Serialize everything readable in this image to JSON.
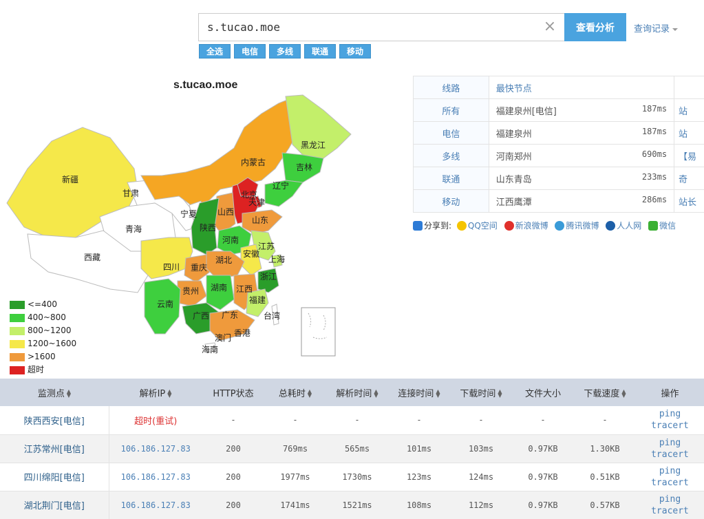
{
  "search": {
    "value": "s.tucao.moe",
    "button_label": "查看分析",
    "history_label": "查询记录"
  },
  "filters": [
    "全选",
    "电信",
    "多线",
    "联通",
    "移动"
  ],
  "map": {
    "title": "s.tucao.moe",
    "provinces": [
      {
        "name": "新疆",
        "color": "#f5e84a"
      },
      {
        "name": "甘肃",
        "color": "#ffffff"
      },
      {
        "name": "青海",
        "color": "#ffffff"
      },
      {
        "name": "西藏",
        "color": "#ffffff"
      },
      {
        "name": "内蒙古",
        "color": "#f5a623"
      },
      {
        "name": "黑龙江",
        "color": "#c3ef6a"
      },
      {
        "name": "吉林",
        "color": "#3ecf3e"
      },
      {
        "name": "辽宁",
        "color": "#3ecf3e"
      },
      {
        "name": "北京",
        "color": "#dd2222"
      },
      {
        "name": "天津",
        "color": "#dd2222"
      },
      {
        "name": "河北",
        "color": "#dd2222"
      },
      {
        "name": "山西",
        "color": "#ef9a3c"
      },
      {
        "name": "山东",
        "color": "#ef9a3c"
      },
      {
        "name": "宁夏",
        "color": "#ffffff"
      },
      {
        "name": "陕西",
        "color": "#2a9d2a"
      },
      {
        "name": "河南",
        "color": "#3ecf3e"
      },
      {
        "name": "江苏",
        "color": "#c3ef6a"
      },
      {
        "name": "安徽",
        "color": "#f5e84a"
      },
      {
        "name": "上海",
        "color": "#c3ef6a"
      },
      {
        "name": "四川",
        "color": "#f5e84a"
      },
      {
        "name": "重庆",
        "color": "#ef9a3c"
      },
      {
        "name": "湖北",
        "color": "#ef9a3c"
      },
      {
        "name": "浙江",
        "color": "#2a9d2a"
      },
      {
        "name": "贵州",
        "color": "#ef9a3c"
      },
      {
        "name": "湖南",
        "color": "#3ecf3e"
      },
      {
        "name": "江西",
        "color": "#ef9a3c"
      },
      {
        "name": "福建",
        "color": "#c3ef6a"
      },
      {
        "name": "云南",
        "color": "#3ecf3e"
      },
      {
        "name": "广西",
        "color": "#2a9d2a"
      },
      {
        "name": "广东",
        "color": "#ef9a3c"
      },
      {
        "name": "台湾",
        "color": "#ffffff"
      },
      {
        "name": "澳门",
        "color": "#ffffff"
      },
      {
        "name": "香港",
        "color": "#ffffff"
      },
      {
        "name": "海南",
        "color": "#ffffff"
      },
      {
        "name": "南海诸岛",
        "color": "#ffffff"
      }
    ]
  },
  "legend": [
    {
      "label": "<=400",
      "color": "#2a9d2a"
    },
    {
      "label": "400~800",
      "color": "#3ecf3e"
    },
    {
      "label": "800~1200",
      "color": "#c3ef6a"
    },
    {
      "label": "1200~1600",
      "color": "#f5e84a"
    },
    {
      "label": ">1600",
      "color": "#ef9a3c"
    },
    {
      "label": "超时",
      "color": "#dd2222"
    }
  ],
  "route_table": {
    "header": {
      "type": "线路",
      "node": "最快节点"
    },
    "rows": [
      {
        "type": "所有",
        "node": "福建泉州[电信]",
        "time": "187ms",
        "extra": "站"
      },
      {
        "type": "电信",
        "node": "福建泉州",
        "time": "187ms",
        "extra": "站"
      },
      {
        "type": "多线",
        "node": "河南郑州",
        "time": "690ms",
        "extra": "【易"
      },
      {
        "type": "联通",
        "node": "山东青岛",
        "time": "233ms",
        "extra": "奇"
      },
      {
        "type": "移动",
        "node": "江西鹰潭",
        "time": "286ms",
        "extra": "站长"
      }
    ]
  },
  "share": {
    "label": "分享到:",
    "items": [
      "QQ空间",
      "新浪微博",
      "腾讯微博",
      "人人网",
      "微信"
    ]
  },
  "results": {
    "headers": [
      "监测点",
      "解析IP",
      "HTTP状态",
      "总耗时",
      "解析时间",
      "连接时间",
      "下载时间",
      "文件大小",
      "下载速度",
      "操作"
    ],
    "rows": [
      {
        "loc": "陕西西安[电信]",
        "ip": "超时(重试)",
        "status": "-",
        "total": "-",
        "dns": "-",
        "connect": "-",
        "download": "-",
        "size": "-",
        "speed": "-"
      },
      {
        "loc": "江苏常州[电信]",
        "ip": "106.186.127.83",
        "status": "200",
        "total": "769ms",
        "dns": "565ms",
        "connect": "101ms",
        "download": "103ms",
        "size": "0.97KB",
        "speed": "1.30KB"
      },
      {
        "loc": "四川绵阳[电信]",
        "ip": "106.186.127.83",
        "status": "200",
        "total": "1977ms",
        "dns": "1730ms",
        "connect": "123ms",
        "download": "124ms",
        "size": "0.97KB",
        "speed": "0.51KB"
      },
      {
        "loc": "湖北荆门[电信]",
        "ip": "106.186.127.83",
        "status": "200",
        "total": "1741ms",
        "dns": "1521ms",
        "connect": "108ms",
        "download": "112ms",
        "size": "0.97KB",
        "speed": "0.57KB"
      }
    ],
    "ops": [
      "ping",
      "tracert"
    ]
  }
}
